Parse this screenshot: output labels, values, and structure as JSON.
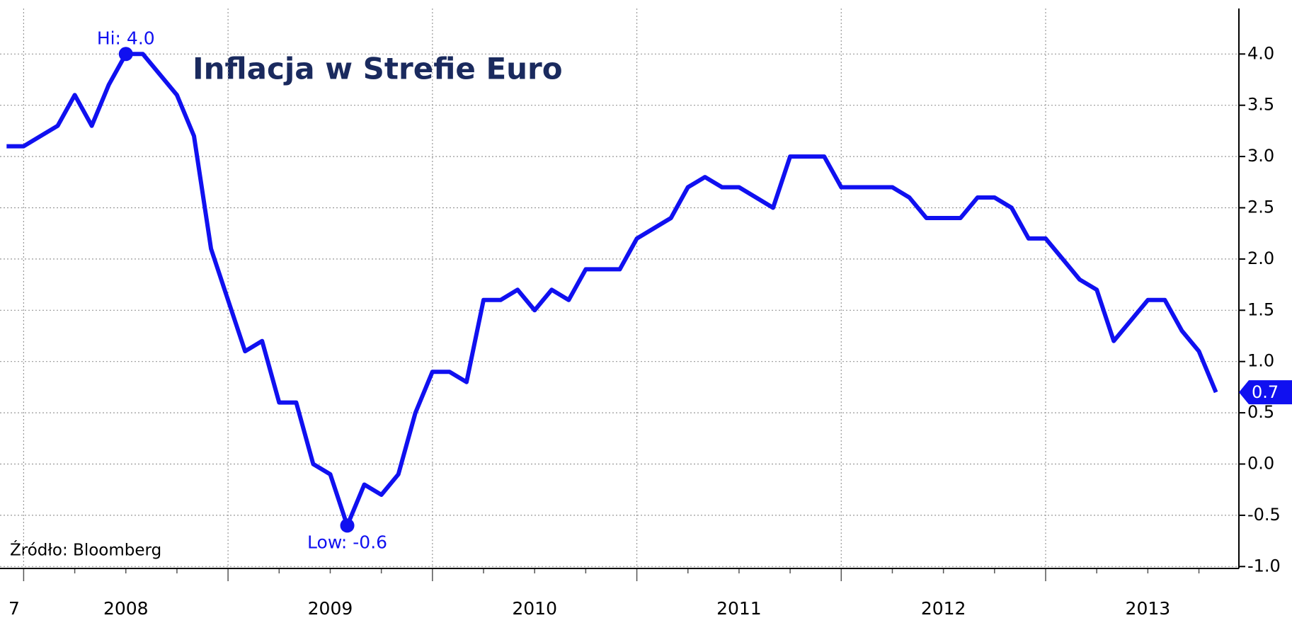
{
  "chart_data": {
    "type": "line",
    "title": "Inflacja w Strefie Euro",
    "source": "Źródło: Bloomberg",
    "xtick_labels": [
      "7",
      "2008",
      "2009",
      "2010",
      "2011",
      "2012",
      "2013"
    ],
    "series": [
      {
        "color": "#1010f0",
        "values": [
          3.1,
          3.1,
          3.2,
          3.3,
          3.6,
          3.3,
          3.7,
          4.0,
          4.0,
          3.8,
          3.6,
          3.2,
          2.1,
          1.6,
          1.1,
          1.2,
          0.6,
          0.6,
          0.0,
          -0.1,
          -0.6,
          -0.2,
          -0.3,
          -0.1,
          0.5,
          0.9,
          0.9,
          0.8,
          1.6,
          1.6,
          1.7,
          1.5,
          1.7,
          1.6,
          1.9,
          1.9,
          1.9,
          2.2,
          2.3,
          2.4,
          2.7,
          2.8,
          2.7,
          2.7,
          2.6,
          2.5,
          3.0,
          3.0,
          3.0,
          2.7,
          2.7,
          2.7,
          2.7,
          2.6,
          2.4,
          2.4,
          2.4,
          2.6,
          2.6,
          2.5,
          2.2,
          2.2,
          2.0,
          1.8,
          1.7,
          1.2,
          1.4,
          1.6,
          1.6,
          1.3,
          1.1,
          0.7
        ]
      }
    ],
    "annotations": [
      {
        "text": "Hi: 4.0",
        "index": 7
      },
      {
        "text": "Low: -0.6",
        "index": 20
      }
    ],
    "ylim": [
      -1.1,
      4.4
    ],
    "yticks": [
      {
        "value": -1,
        "label": "-1.0"
      },
      -0.5,
      {
        "value": 0,
        "label": "0.0"
      },
      0.5,
      {
        "value": 1,
        "label": "1.0"
      },
      1.5,
      {
        "value": 2,
        "label": "2.0"
      },
      2.5,
      {
        "value": 3,
        "label": "3.0"
      },
      3.5,
      {
        "value": 4,
        "label": "4.0"
      }
    ],
    "grid": true
  }
}
